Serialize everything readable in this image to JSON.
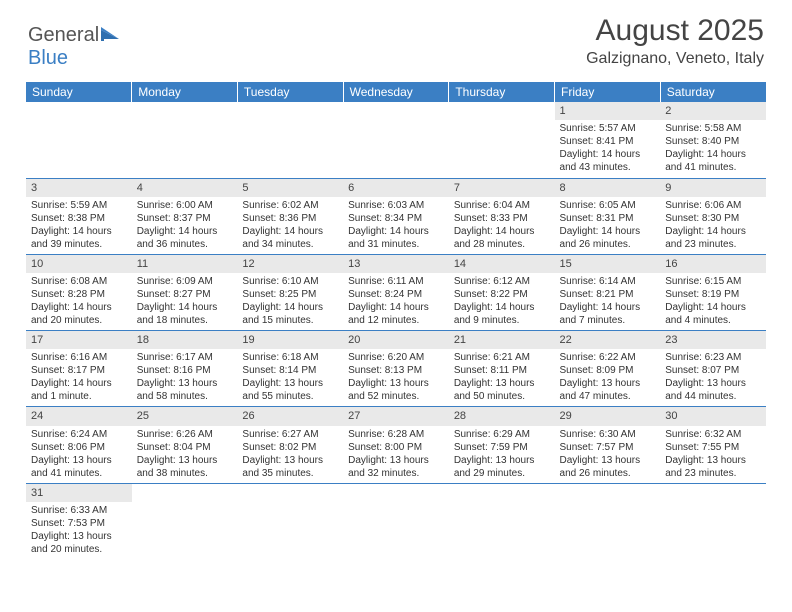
{
  "logo": {
    "part1": "General",
    "part2": "Blue"
  },
  "header": {
    "month": "August 2025",
    "location": "Galzignano, Veneto, Italy"
  },
  "colors": {
    "accent": "#3b7fc4",
    "header_text": "#ffffff",
    "daynum_bg": "#e9e9e9",
    "body_text": "#333333"
  },
  "calendar": {
    "day_headers": [
      "Sunday",
      "Monday",
      "Tuesday",
      "Wednesday",
      "Thursday",
      "Friday",
      "Saturday"
    ],
    "weeks": [
      [
        null,
        null,
        null,
        null,
        null,
        {
          "n": "1",
          "sr": "Sunrise: 5:57 AM",
          "ss": "Sunset: 8:41 PM",
          "dl": "Daylight: 14 hours and 43 minutes."
        },
        {
          "n": "2",
          "sr": "Sunrise: 5:58 AM",
          "ss": "Sunset: 8:40 PM",
          "dl": "Daylight: 14 hours and 41 minutes."
        }
      ],
      [
        {
          "n": "3",
          "sr": "Sunrise: 5:59 AM",
          "ss": "Sunset: 8:38 PM",
          "dl": "Daylight: 14 hours and 39 minutes."
        },
        {
          "n": "4",
          "sr": "Sunrise: 6:00 AM",
          "ss": "Sunset: 8:37 PM",
          "dl": "Daylight: 14 hours and 36 minutes."
        },
        {
          "n": "5",
          "sr": "Sunrise: 6:02 AM",
          "ss": "Sunset: 8:36 PM",
          "dl": "Daylight: 14 hours and 34 minutes."
        },
        {
          "n": "6",
          "sr": "Sunrise: 6:03 AM",
          "ss": "Sunset: 8:34 PM",
          "dl": "Daylight: 14 hours and 31 minutes."
        },
        {
          "n": "7",
          "sr": "Sunrise: 6:04 AM",
          "ss": "Sunset: 8:33 PM",
          "dl": "Daylight: 14 hours and 28 minutes."
        },
        {
          "n": "8",
          "sr": "Sunrise: 6:05 AM",
          "ss": "Sunset: 8:31 PM",
          "dl": "Daylight: 14 hours and 26 minutes."
        },
        {
          "n": "9",
          "sr": "Sunrise: 6:06 AM",
          "ss": "Sunset: 8:30 PM",
          "dl": "Daylight: 14 hours and 23 minutes."
        }
      ],
      [
        {
          "n": "10",
          "sr": "Sunrise: 6:08 AM",
          "ss": "Sunset: 8:28 PM",
          "dl": "Daylight: 14 hours and 20 minutes."
        },
        {
          "n": "11",
          "sr": "Sunrise: 6:09 AM",
          "ss": "Sunset: 8:27 PM",
          "dl": "Daylight: 14 hours and 18 minutes."
        },
        {
          "n": "12",
          "sr": "Sunrise: 6:10 AM",
          "ss": "Sunset: 8:25 PM",
          "dl": "Daylight: 14 hours and 15 minutes."
        },
        {
          "n": "13",
          "sr": "Sunrise: 6:11 AM",
          "ss": "Sunset: 8:24 PM",
          "dl": "Daylight: 14 hours and 12 minutes."
        },
        {
          "n": "14",
          "sr": "Sunrise: 6:12 AM",
          "ss": "Sunset: 8:22 PM",
          "dl": "Daylight: 14 hours and 9 minutes."
        },
        {
          "n": "15",
          "sr": "Sunrise: 6:14 AM",
          "ss": "Sunset: 8:21 PM",
          "dl": "Daylight: 14 hours and 7 minutes."
        },
        {
          "n": "16",
          "sr": "Sunrise: 6:15 AM",
          "ss": "Sunset: 8:19 PM",
          "dl": "Daylight: 14 hours and 4 minutes."
        }
      ],
      [
        {
          "n": "17",
          "sr": "Sunrise: 6:16 AM",
          "ss": "Sunset: 8:17 PM",
          "dl": "Daylight: 14 hours and 1 minute."
        },
        {
          "n": "18",
          "sr": "Sunrise: 6:17 AM",
          "ss": "Sunset: 8:16 PM",
          "dl": "Daylight: 13 hours and 58 minutes."
        },
        {
          "n": "19",
          "sr": "Sunrise: 6:18 AM",
          "ss": "Sunset: 8:14 PM",
          "dl": "Daylight: 13 hours and 55 minutes."
        },
        {
          "n": "20",
          "sr": "Sunrise: 6:20 AM",
          "ss": "Sunset: 8:13 PM",
          "dl": "Daylight: 13 hours and 52 minutes."
        },
        {
          "n": "21",
          "sr": "Sunrise: 6:21 AM",
          "ss": "Sunset: 8:11 PM",
          "dl": "Daylight: 13 hours and 50 minutes."
        },
        {
          "n": "22",
          "sr": "Sunrise: 6:22 AM",
          "ss": "Sunset: 8:09 PM",
          "dl": "Daylight: 13 hours and 47 minutes."
        },
        {
          "n": "23",
          "sr": "Sunrise: 6:23 AM",
          "ss": "Sunset: 8:07 PM",
          "dl": "Daylight: 13 hours and 44 minutes."
        }
      ],
      [
        {
          "n": "24",
          "sr": "Sunrise: 6:24 AM",
          "ss": "Sunset: 8:06 PM",
          "dl": "Daylight: 13 hours and 41 minutes."
        },
        {
          "n": "25",
          "sr": "Sunrise: 6:26 AM",
          "ss": "Sunset: 8:04 PM",
          "dl": "Daylight: 13 hours and 38 minutes."
        },
        {
          "n": "26",
          "sr": "Sunrise: 6:27 AM",
          "ss": "Sunset: 8:02 PM",
          "dl": "Daylight: 13 hours and 35 minutes."
        },
        {
          "n": "27",
          "sr": "Sunrise: 6:28 AM",
          "ss": "Sunset: 8:00 PM",
          "dl": "Daylight: 13 hours and 32 minutes."
        },
        {
          "n": "28",
          "sr": "Sunrise: 6:29 AM",
          "ss": "Sunset: 7:59 PM",
          "dl": "Daylight: 13 hours and 29 minutes."
        },
        {
          "n": "29",
          "sr": "Sunrise: 6:30 AM",
          "ss": "Sunset: 7:57 PM",
          "dl": "Daylight: 13 hours and 26 minutes."
        },
        {
          "n": "30",
          "sr": "Sunrise: 6:32 AM",
          "ss": "Sunset: 7:55 PM",
          "dl": "Daylight: 13 hours and 23 minutes."
        }
      ],
      [
        {
          "n": "31",
          "sr": "Sunrise: 6:33 AM",
          "ss": "Sunset: 7:53 PM",
          "dl": "Daylight: 13 hours and 20 minutes."
        },
        null,
        null,
        null,
        null,
        null,
        null
      ]
    ]
  }
}
